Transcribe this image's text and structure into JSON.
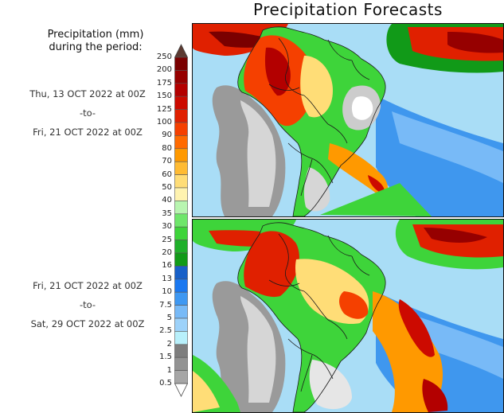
{
  "title": "Precipitation Forecasts",
  "legend": {
    "heading_line1": "Precipitation (mm)",
    "heading_line2": "during the period:",
    "unit": "mm",
    "levels": [
      "250",
      "200",
      "175",
      "150",
      "125",
      "100",
      "90",
      "80",
      "70",
      "60",
      "50",
      "40",
      "35",
      "30",
      "25",
      "20",
      "16",
      "13",
      "10",
      "7.5",
      "5",
      "2.5",
      "2",
      "1.5",
      "1",
      "0.5"
    ],
    "colors": [
      "#7a0000",
      "#960000",
      "#b30000",
      "#cc0a00",
      "#e02000",
      "#f54000",
      "#ff6a00",
      "#ff9900",
      "#ffbb33",
      "#ffdd77",
      "#fff3b0",
      "#b8f5b0",
      "#6ee66a",
      "#3ed43a",
      "#1fb02a",
      "#119a18",
      "#1860c8",
      "#1a78f0",
      "#3e98f2",
      "#78baf7",
      "#9dd2fa",
      "#b8f0fb",
      "#7e7e7e",
      "#939393",
      "#a6a6a6",
      "#bcbcbc"
    ],
    "over_color": "#5c3a32",
    "under_color": "#ffffff"
  },
  "panels": [
    {
      "name": "forecast-period-1",
      "start": "Thu, 13 OCT 2022 at 00Z",
      "separator": "-to-",
      "end": "Fri, 21 OCT 2022 at 00Z"
    },
    {
      "name": "forecast-period-2",
      "start": "Fri, 21 OCT 2022 at 00Z",
      "separator": "-to-",
      "end": "Sat, 29 OCT 2022 at 00Z"
    }
  ]
}
